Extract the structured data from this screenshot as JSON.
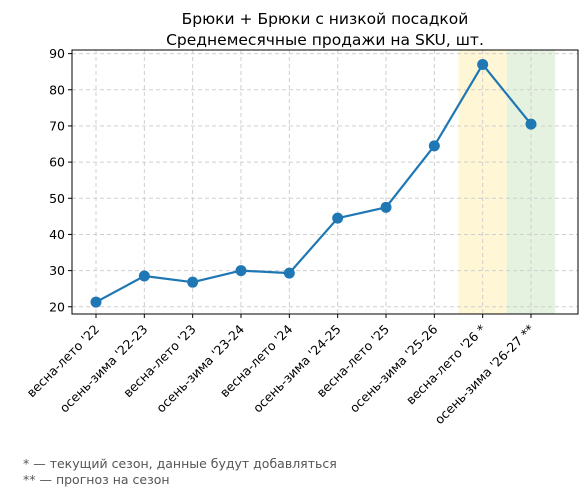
{
  "chart_data": {
    "type": "line",
    "title": "Брюки + Брюки с низкой посадкой",
    "subtitle": "Среднемесячные продажи на SKU, шт.",
    "xlabel": "",
    "ylabel": "",
    "categories": [
      "весна-лето '22",
      "осень-зима '22-23",
      "весна-лето '23",
      "осень-зима '23-24",
      "весна-лето '24",
      "осень-зима '24-25",
      "весна-лето '25",
      "осень-зима '25-26",
      "весна-лето '26 *",
      "осень-зима '26-27 **"
    ],
    "values": [
      21.3,
      28.5,
      26.8,
      30.0,
      29.3,
      44.5,
      47.5,
      64.5,
      87.0,
      70.5
    ],
    "ylim": [
      18,
      91
    ],
    "yticks": [
      20,
      30,
      40,
      50,
      60,
      70,
      80,
      90
    ],
    "grid": true,
    "line_color": "#1f77b4",
    "highlights": [
      {
        "category": "весна-лето '26 *",
        "color": "#fff6d5"
      },
      {
        "category": "осень-зима '26-27 **",
        "color": "#e5f2e0"
      }
    ]
  },
  "footnotes": [
    "* — текущий сезон, данные будут добавляться",
    "** — прогноз на сезон"
  ]
}
